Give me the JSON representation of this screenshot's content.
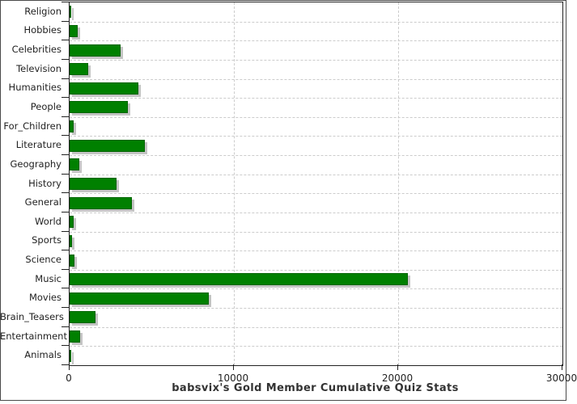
{
  "chart_data": {
    "type": "bar",
    "orientation": "horizontal",
    "title": "babsvix's Gold Member Cumulative Quiz Stats",
    "categories": [
      "Religion",
      "Hobbies",
      "Celebrities",
      "Television",
      "Humanities",
      "People",
      "For_Children",
      "Literature",
      "Geography",
      "History",
      "General",
      "World",
      "Sports",
      "Science",
      "Music",
      "Movies",
      "Brain_Teasers",
      "Entertainment",
      "Animals"
    ],
    "values": [
      110,
      480,
      3090,
      1120,
      4190,
      3530,
      260,
      4600,
      610,
      2840,
      3780,
      250,
      130,
      300,
      20600,
      8460,
      1560,
      660,
      110
    ],
    "xlim": [
      0,
      30000
    ],
    "x_ticks": [
      0,
      10000,
      20000,
      30000
    ],
    "x_tick_labels": [
      "0",
      "10000",
      "20000",
      "30000"
    ],
    "xlabel": "",
    "ylabel": "",
    "grid": "dashed",
    "legend": "none",
    "colors": {
      "bar_fill": "#008000",
      "bar_border": "#006400",
      "bar_shadow": "#c4c4c4",
      "grid_line": "#cccccc",
      "axis_line": "#222222",
      "text": "#222222",
      "title_text": "#333333",
      "background": "#ffffff"
    }
  }
}
